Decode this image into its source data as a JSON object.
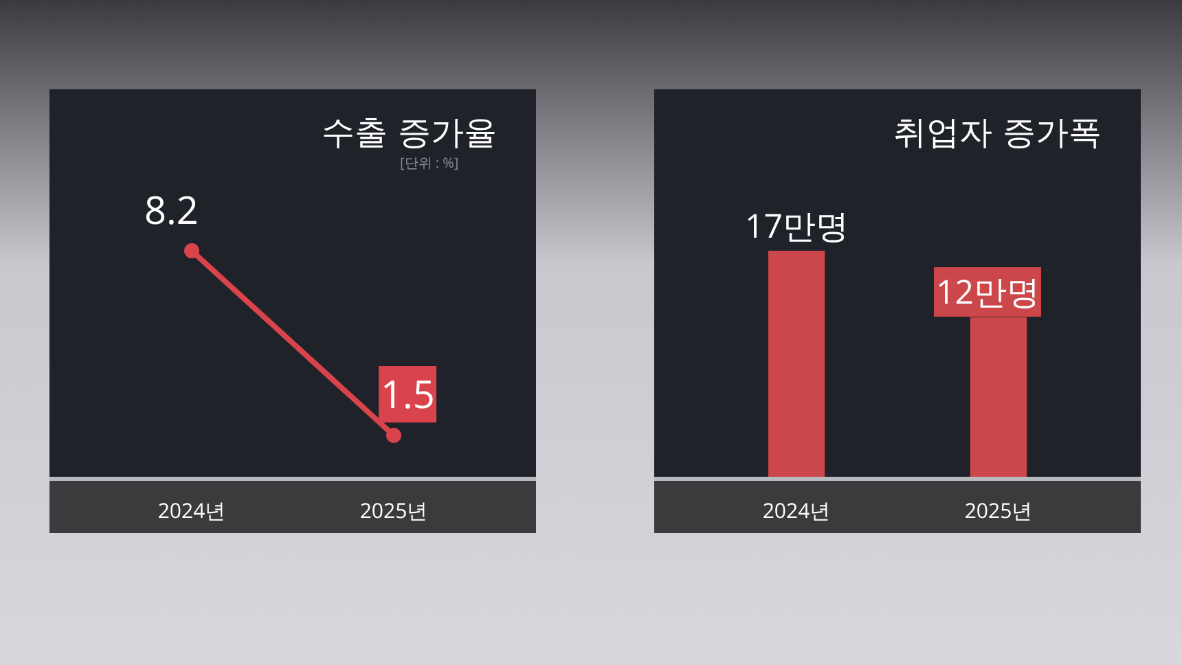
{
  "chart_data": [
    {
      "type": "line",
      "title": "수출 증가율",
      "annotations": [
        "[단위 : %]"
      ],
      "categories": [
        "2024년",
        "2025년"
      ],
      "values": [
        8.2,
        1.5
      ],
      "color": "#d9434b",
      "marker": "circle",
      "data_labels": true,
      "grid": false,
      "legend": false
    },
    {
      "type": "bar",
      "title": "취업자 증가폭",
      "categories": [
        "2024년",
        "2025년"
      ],
      "values": [
        17,
        12
      ],
      "value_labels": [
        "17만명",
        "12만명"
      ],
      "color": "#cc474a",
      "grid": false,
      "legend": false
    }
  ]
}
